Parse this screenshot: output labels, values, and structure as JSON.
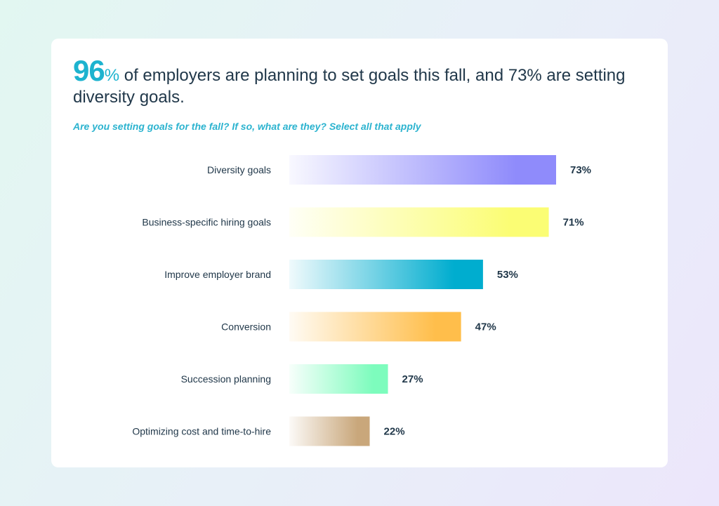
{
  "header": {
    "headline_number": "96",
    "headline_percent": "%",
    "headline_rest": " of employers are planning to set goals this fall, and 73% are setting diversity goals.",
    "subtitle": "Are you setting goals for the fall? If so, what are they? Select all that apply"
  },
  "chart_data": {
    "type": "bar",
    "orientation": "horizontal",
    "categories": [
      "Diversity goals",
      "Business-specific hiring goals",
      "Improve employer brand",
      "Conversion",
      "Succession planning",
      "Optimizing cost and time-to-hire"
    ],
    "values": [
      73,
      71,
      53,
      47,
      27,
      22
    ],
    "value_labels": [
      "73%",
      "71%",
      "53%",
      "47%",
      "27%",
      "22%"
    ],
    "title": "96% of employers are planning to set goals this fall, and 73% are setting diversity goals.",
    "subtitle": "Are you setting goals for the fall? If so, what are they? Select all that apply",
    "xlabel": "",
    "ylabel": "",
    "xlim": [
      0,
      100
    ],
    "grid": false,
    "legend": "none",
    "bar_colors": [
      "#8f8bfb",
      "#fbfd74",
      "#00adcf",
      "#ffbe4b",
      "#7dfcbd",
      "#c9a77b"
    ]
  }
}
